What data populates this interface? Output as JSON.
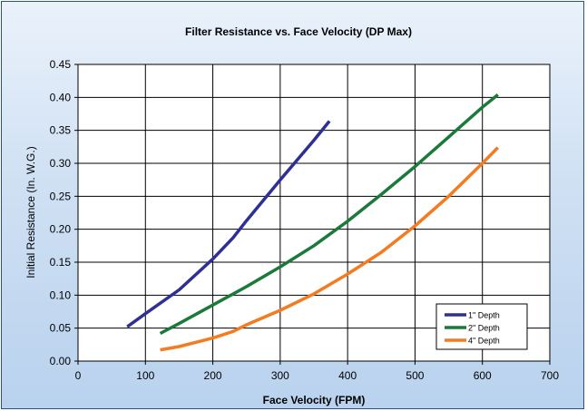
{
  "chart_data": {
    "type": "line",
    "title": "Filter Resistance vs. Face Velocity (DP Max)",
    "xlabel": "Face Velocity (FPM)",
    "ylabel": "Initial Resistance (In. W.G.)",
    "xlim": [
      0,
      700
    ],
    "ylim": [
      0,
      0.45
    ],
    "xticks": [
      "0",
      "100",
      "200",
      "300",
      "400",
      "500",
      "600",
      "700"
    ],
    "yticks": [
      "0.00",
      "0.05",
      "0.10",
      "0.15",
      "0.20",
      "0.25",
      "0.30",
      "0.35",
      "0.40",
      "0.45"
    ],
    "grid": true,
    "legend_position": "bottom-right",
    "series": [
      {
        "name": "1\" Depth",
        "color": "#2e3192",
        "points": [
          [
            73,
            0.052
          ],
          [
            100,
            0.072
          ],
          [
            150,
            0.108
          ],
          [
            200,
            0.155
          ],
          [
            230,
            0.187
          ],
          [
            250,
            0.213
          ],
          [
            300,
            0.275
          ],
          [
            350,
            0.335
          ],
          [
            373,
            0.364
          ]
        ]
      },
      {
        "name": "2\" Depth",
        "color": "#1a7a3a",
        "points": [
          [
            122,
            0.042
          ],
          [
            150,
            0.057
          ],
          [
            200,
            0.085
          ],
          [
            250,
            0.113
          ],
          [
            300,
            0.143
          ],
          [
            350,
            0.175
          ],
          [
            400,
            0.212
          ],
          [
            450,
            0.253
          ],
          [
            500,
            0.295
          ],
          [
            550,
            0.34
          ],
          [
            600,
            0.385
          ],
          [
            623,
            0.404
          ]
        ]
      },
      {
        "name": "4\" Depth",
        "color": "#f47b20",
        "points": [
          [
            122,
            0.017
          ],
          [
            150,
            0.022
          ],
          [
            200,
            0.035
          ],
          [
            230,
            0.045
          ],
          [
            250,
            0.055
          ],
          [
            300,
            0.077
          ],
          [
            350,
            0.102
          ],
          [
            400,
            0.132
          ],
          [
            450,
            0.165
          ],
          [
            500,
            0.205
          ],
          [
            550,
            0.25
          ],
          [
            600,
            0.3
          ],
          [
            623,
            0.324
          ]
        ]
      }
    ]
  }
}
